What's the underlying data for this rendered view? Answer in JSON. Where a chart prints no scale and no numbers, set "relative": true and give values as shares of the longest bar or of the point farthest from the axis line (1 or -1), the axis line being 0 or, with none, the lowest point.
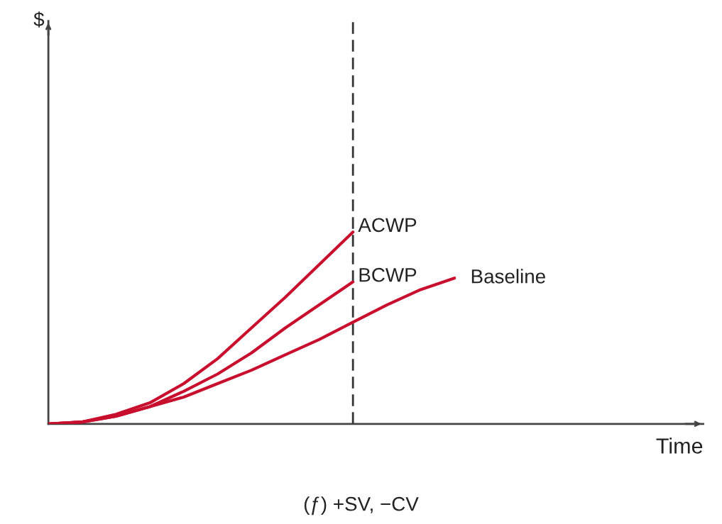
{
  "chart_data": {
    "type": "line",
    "relative": true,
    "xlabel": "Time",
    "annotations": [
      "$",
      "(ƒ) +SV, −CV"
    ],
    "categories": [
      null,
      null,
      null,
      null,
      null,
      null,
      null,
      null,
      null,
      null,
      null,
      null,
      null,
      null,
      null,
      null,
      null,
      null,
      null,
      null
    ],
    "series": [
      {
        "name": "ACWP",
        "color": "#c8102e",
        "values": [
          0,
          0.01,
          0.05,
          0.11,
          0.21,
          0.34,
          0.5,
          0.66,
          0.83,
          1.0,
          null,
          null,
          null,
          null,
          null,
          null,
          null,
          null,
          null,
          null
        ]
      },
      {
        "name": "BCWP",
        "color": "#c8102e",
        "values": [
          0,
          0.01,
          0.04,
          0.09,
          0.17,
          0.26,
          0.37,
          0.5,
          0.62,
          0.74,
          null,
          null,
          null,
          null,
          null,
          null,
          null,
          null,
          null,
          null
        ]
      },
      {
        "name": "Baseline",
        "color": "#c8102e",
        "values": [
          0,
          0.01,
          0.04,
          0.09,
          0.14,
          0.21,
          0.28,
          0.36,
          0.44,
          0.53,
          0.62,
          0.7,
          0.76,
          null,
          null,
          null,
          null,
          null,
          null,
          null
        ]
      }
    ],
    "legend": false,
    "marker": "none",
    "line_style": "solid"
  }
}
